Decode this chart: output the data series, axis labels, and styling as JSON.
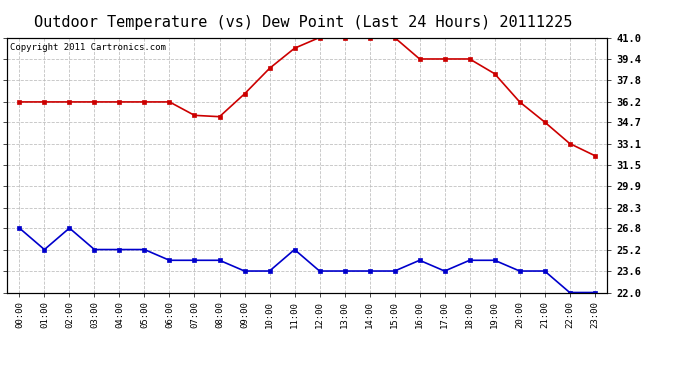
{
  "title": "Outdoor Temperature (vs) Dew Point (Last 24 Hours) 20111225",
  "copyright_text": "Copyright 2011 Cartronics.com",
  "hours": [
    "00:00",
    "01:00",
    "02:00",
    "03:00",
    "04:00",
    "05:00",
    "06:00",
    "07:00",
    "08:00",
    "09:00",
    "10:00",
    "11:00",
    "12:00",
    "13:00",
    "14:00",
    "15:00",
    "16:00",
    "17:00",
    "18:00",
    "19:00",
    "20:00",
    "21:00",
    "22:00",
    "23:00"
  ],
  "temp_red": [
    36.2,
    36.2,
    36.2,
    36.2,
    36.2,
    36.2,
    36.2,
    35.2,
    35.1,
    36.8,
    38.7,
    40.2,
    41.0,
    41.0,
    41.0,
    41.0,
    39.4,
    39.4,
    39.4,
    38.3,
    36.2,
    34.7,
    33.1,
    32.2
  ],
  "dew_blue": [
    26.8,
    25.2,
    26.8,
    25.2,
    25.2,
    25.2,
    24.4,
    24.4,
    24.4,
    23.6,
    23.6,
    25.2,
    23.6,
    23.6,
    23.6,
    23.6,
    24.4,
    23.6,
    24.4,
    24.4,
    23.6,
    23.6,
    22.0,
    22.0
  ],
  "ylim": [
    22.0,
    41.0
  ],
  "yticks": [
    41.0,
    39.4,
    37.8,
    36.2,
    34.7,
    33.1,
    31.5,
    29.9,
    28.3,
    26.8,
    25.2,
    23.6,
    22.0
  ],
  "red_color": "#cc0000",
  "blue_color": "#0000cc",
  "bg_color": "#ffffff",
  "plot_bg_color": "#ffffff",
  "grid_color": "#bbbbbb",
  "title_fontsize": 11,
  "copyright_fontsize": 6.5,
  "marker_size": 3.0,
  "line_width": 1.2
}
